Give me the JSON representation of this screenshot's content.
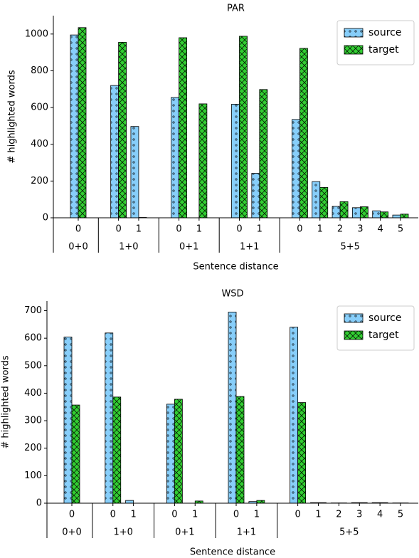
{
  "chart_data": [
    {
      "type": "bar",
      "title": "PAR",
      "x_label": "Sentence distance",
      "y_label": "# highlighted words",
      "groups": [
        {
          "label": "0+0",
          "categories": [
            "0"
          ]
        },
        {
          "label": "1+0",
          "categories": [
            "0",
            "1"
          ]
        },
        {
          "label": "0+1",
          "categories": [
            "0",
            "1"
          ]
        },
        {
          "label": "1+1",
          "categories": [
            "0",
            "1"
          ]
        },
        {
          "label": "5+5",
          "categories": [
            "0",
            "1",
            "2",
            "3",
            "4",
            "5"
          ]
        }
      ],
      "series": [
        {
          "name": "source",
          "color": "#87cefa",
          "hatch": "o",
          "values": [
            995,
            720,
            497,
            655,
            0,
            618,
            242,
            535,
            197,
            62,
            55,
            38,
            15
          ]
        },
        {
          "name": "target",
          "color": "#32cd32",
          "hatch": "x",
          "values": [
            1035,
            955,
            2,
            980,
            620,
            988,
            698,
            922,
            165,
            88,
            60,
            32,
            20
          ]
        }
      ],
      "ylim": [
        0,
        1100
      ],
      "yticks": [
        0,
        200,
        400,
        600,
        800,
        1000
      ],
      "legend": "upper right"
    },
    {
      "type": "bar",
      "title": "WSD",
      "x_label": "Sentence distance",
      "y_label": "# highlighted words",
      "groups": [
        {
          "label": "0+0",
          "categories": [
            "0"
          ]
        },
        {
          "label": "1+0",
          "categories": [
            "0",
            "1"
          ]
        },
        {
          "label": "0+1",
          "categories": [
            "0",
            "1"
          ]
        },
        {
          "label": "1+1",
          "categories": [
            "0",
            "1"
          ]
        },
        {
          "label": "5+5",
          "categories": [
            "0",
            "1",
            "2",
            "3",
            "4",
            "5"
          ]
        }
      ],
      "series": [
        {
          "name": "source",
          "color": "#87cefa",
          "hatch": "o",
          "values": [
            604,
            619,
            10,
            360,
            0,
            695,
            6,
            640,
            2,
            1,
            2,
            2,
            1
          ]
        },
        {
          "name": "target",
          "color": "#32cd32",
          "hatch": "x",
          "values": [
            357,
            386,
            0,
            378,
            8,
            388,
            10,
            366,
            2,
            1,
            2,
            2,
            1
          ]
        }
      ],
      "ylim": [
        0,
        735
      ],
      "yticks": [
        0,
        100,
        200,
        300,
        400,
        500,
        600,
        700
      ],
      "legend": "upper right"
    }
  ]
}
